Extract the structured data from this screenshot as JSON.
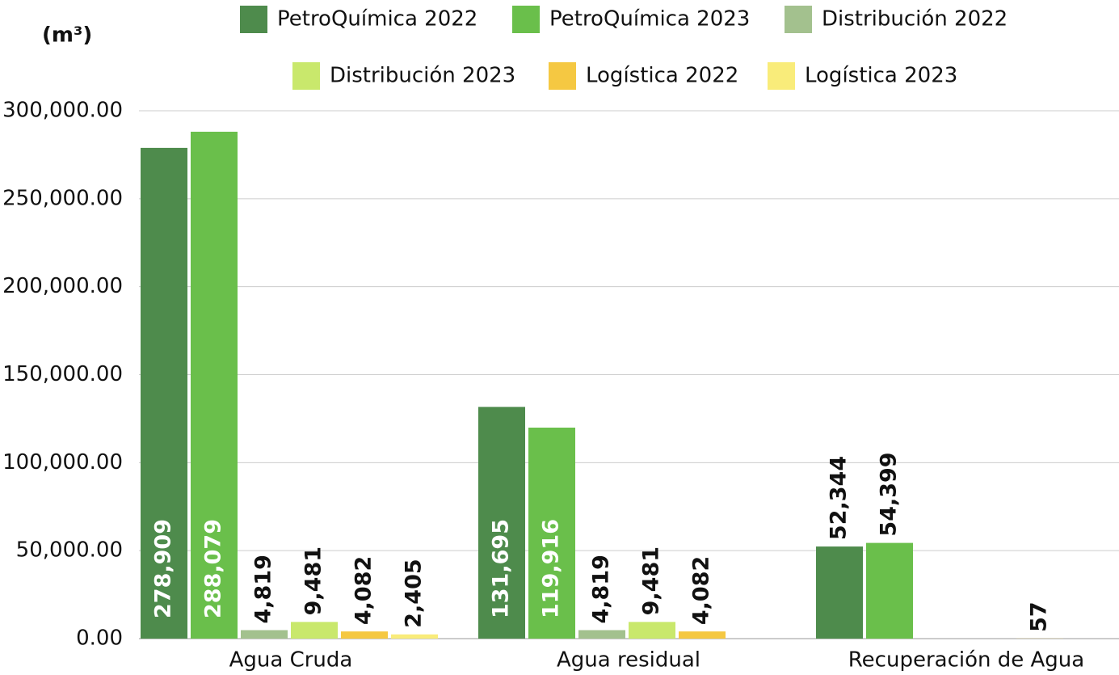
{
  "chart_data": {
    "type": "bar",
    "y_label": "(m³)",
    "categories": [
      "Agua Cruda",
      "Agua residual",
      "Recuperación de Agua"
    ],
    "series": [
      {
        "name": "PetroQuímica 2022",
        "color": "#4e8b4c",
        "values": [
          278909,
          131695,
          52344
        ],
        "value_labels": [
          "278,909",
          "131,695",
          "52,344"
        ]
      },
      {
        "name": "PetroQuímica 2023",
        "color": "#6abf4b",
        "values": [
          288079,
          119916,
          54399
        ],
        "value_labels": [
          "288,079",
          "119,916",
          "54,399"
        ]
      },
      {
        "name": "Distribución 2022",
        "color": "#a3c18e",
        "values": [
          4819,
          4819,
          null
        ],
        "value_labels": [
          "4,819",
          "4,819",
          null
        ]
      },
      {
        "name": "Distribución 2023",
        "color": "#c9e86c",
        "values": [
          9481,
          9481,
          null
        ],
        "value_labels": [
          "9,481",
          "9,481",
          null
        ]
      },
      {
        "name": "Logística 2022",
        "color": "#f5c842",
        "values": [
          4082,
          4082,
          57
        ],
        "value_labels": [
          "4,082",
          "4,082",
          "57"
        ]
      },
      {
        "name": "Logística 2023",
        "color": "#f9ec7a",
        "values": [
          2405,
          null,
          null
        ],
        "value_labels": [
          "2,405",
          null,
          null
        ]
      }
    ],
    "ylim": [
      0,
      300000
    ],
    "yticks": [
      {
        "value": 0,
        "label": "0.00"
      },
      {
        "value": 50000,
        "label": "50,000.00"
      },
      {
        "value": 100000,
        "label": "100,000.00"
      },
      {
        "value": 150000,
        "label": "150,000.00"
      },
      {
        "value": 200000,
        "label": "200,000.00"
      },
      {
        "value": 250000,
        "label": "250,000.00"
      },
      {
        "value": 300000,
        "label": "300,000.00"
      }
    ],
    "grid": true
  }
}
